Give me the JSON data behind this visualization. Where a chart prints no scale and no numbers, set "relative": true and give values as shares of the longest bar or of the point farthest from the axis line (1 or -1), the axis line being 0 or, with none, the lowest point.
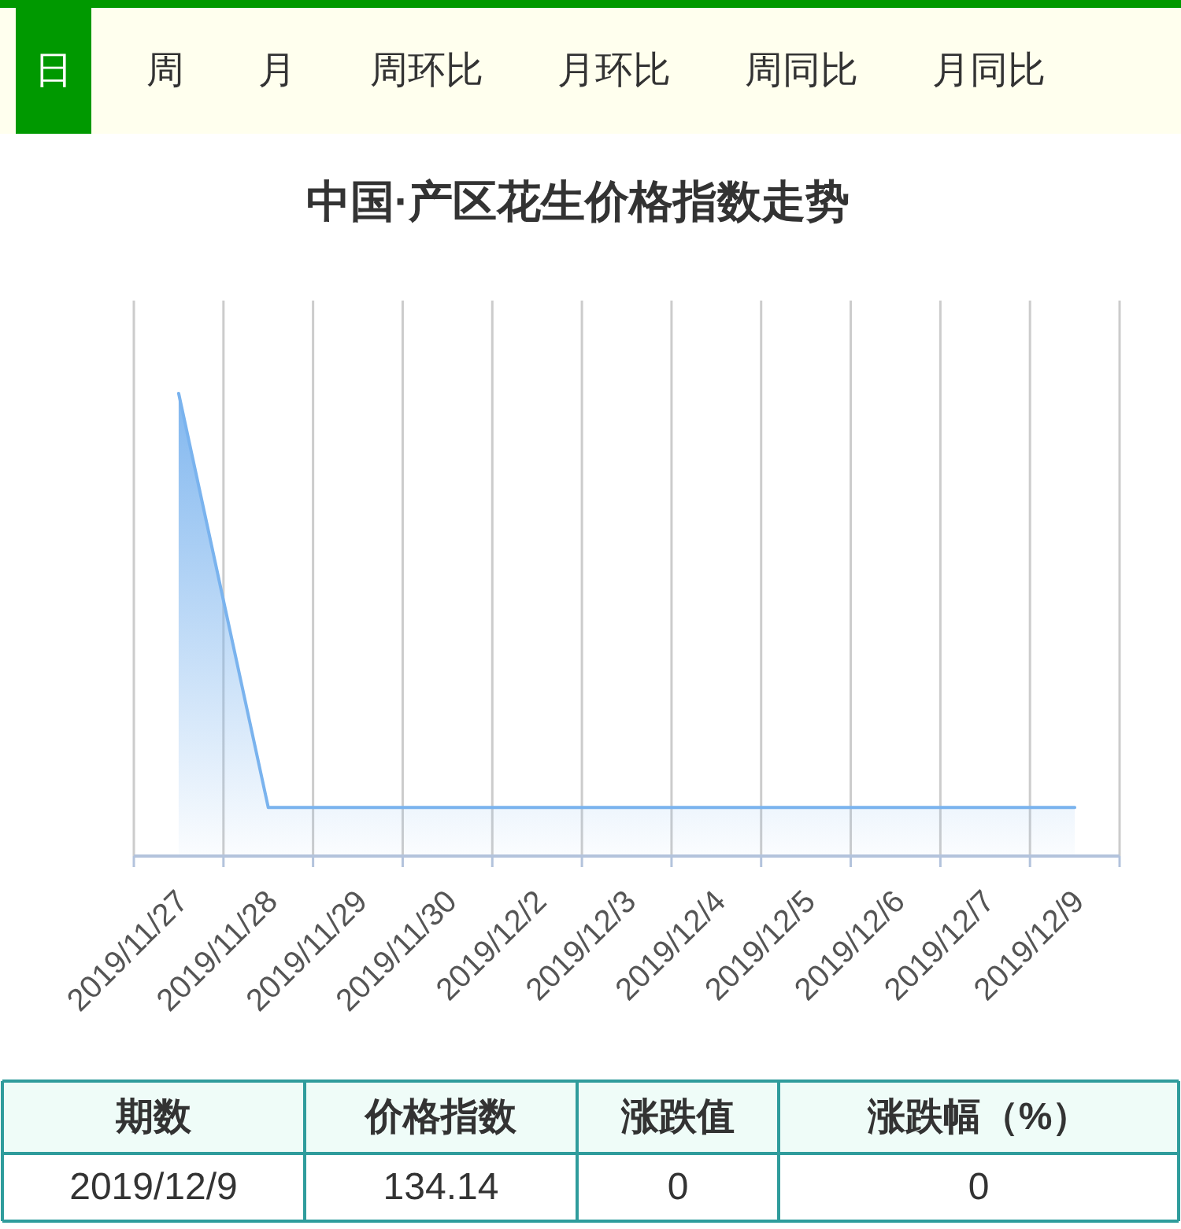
{
  "chart_data": [
    {
      "type": "other",
      "categories": [
        "日",
        "周",
        "月",
        "周环比",
        "月环比",
        "周同比",
        "月同比"
      ],
      "colors": [
        "#009900",
        "#ffffee",
        "#ffffee",
        "#ffffee",
        "#ffffee",
        "#ffffee",
        "#ffffee"
      ]
    },
    {
      "type": "area",
      "title": "中国·产区花生价格指数走势",
      "categories": [
        "2019/11/27",
        "2019/11/28",
        "2019/11/29",
        "2019/11/30",
        "2019/12/2",
        "2019/12/3",
        "2019/12/4",
        "2019/12/5",
        "2019/12/6",
        "2019/12/7",
        "2019/12/9"
      ],
      "relative": true,
      "grid": "x",
      "series": [
        {
          "color": "#7ab3ee",
          "values": [
            1,
            0.105,
            0.105,
            0.105,
            0.105,
            0.105,
            0.105,
            0.105,
            0.105,
            0.105,
            0.105
          ]
        }
      ]
    },
    {
      "type": "other",
      "categories": [
        "期数",
        "价格指数",
        "涨跌值",
        "涨跌幅（%）"
      ],
      "annotations": [
        "2019/12/9",
        "134.14",
        "0",
        "0"
      ]
    }
  ]
}
